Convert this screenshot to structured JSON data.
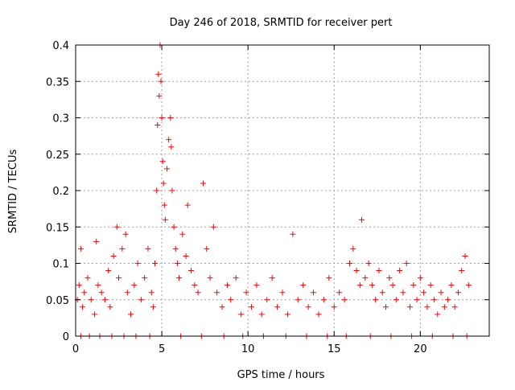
{
  "chart_data": {
    "type": "scatter",
    "title": "Day 246 of 2018, SRMTID for receiver pert",
    "xlabel": "GPS time / hours",
    "ylabel": "SRMTID / TECUs",
    "xlim": [
      0,
      24
    ],
    "ylim": [
      0,
      0.4
    ],
    "grid": true,
    "marker": "+",
    "color": "#ff0000",
    "x_ticks": [
      0,
      5,
      10,
      15,
      20
    ],
    "x_tick_labels": [
      "0",
      "5",
      "10",
      "15",
      "20"
    ],
    "y_ticks": [
      0,
      0.05,
      0.1,
      0.15,
      0.2,
      0.25,
      0.3,
      0.35,
      0.4
    ],
    "y_tick_labels": [
      "0",
      "0.05",
      "0.1",
      "0.15",
      "0.2",
      "0.25",
      "0.3",
      "0.35",
      "0.4"
    ],
    "series": [
      {
        "name": "SRMTID",
        "points": [
          [
            0.1,
            0.05
          ],
          [
            0.2,
            0.07
          ],
          [
            0.3,
            0.12
          ],
          [
            0.4,
            0.04
          ],
          [
            0.5,
            0.06
          ],
          [
            0.7,
            0.08
          ],
          [
            0.9,
            0.05
          ],
          [
            1.1,
            0.03
          ],
          [
            1.2,
            0.13
          ],
          [
            1.3,
            0.07
          ],
          [
            1.5,
            0.06
          ],
          [
            1.7,
            0.05
          ],
          [
            1.9,
            0.09
          ],
          [
            2.0,
            0.04
          ],
          [
            2.2,
            0.11
          ],
          [
            2.4,
            0.15
          ],
          [
            2.5,
            0.08
          ],
          [
            2.7,
            0.12
          ],
          [
            2.9,
            0.14
          ],
          [
            3.0,
            0.06
          ],
          [
            3.2,
            0.03
          ],
          [
            3.4,
            0.07
          ],
          [
            3.6,
            0.1
          ],
          [
            3.8,
            0.05
          ],
          [
            4.0,
            0.08
          ],
          [
            4.2,
            0.12
          ],
          [
            4.4,
            0.06
          ],
          [
            4.5,
            0.04
          ],
          [
            4.6,
            0.1
          ],
          [
            4.7,
            0.2
          ],
          [
            4.75,
            0.29
          ],
          [
            4.8,
            0.36
          ],
          [
            4.85,
            0.33
          ],
          [
            4.9,
            0.4
          ],
          [
            4.95,
            0.35
          ],
          [
            5.0,
            0.3
          ],
          [
            5.05,
            0.24
          ],
          [
            5.1,
            0.21
          ],
          [
            5.15,
            0.18
          ],
          [
            5.2,
            0.16
          ],
          [
            5.3,
            0.23
          ],
          [
            5.4,
            0.27
          ],
          [
            5.5,
            0.3
          ],
          [
            5.55,
            0.26
          ],
          [
            5.6,
            0.2
          ],
          [
            5.7,
            0.15
          ],
          [
            5.8,
            0.12
          ],
          [
            5.9,
            0.1
          ],
          [
            6.0,
            0.08
          ],
          [
            6.2,
            0.14
          ],
          [
            6.4,
            0.11
          ],
          [
            6.5,
            0.18
          ],
          [
            6.7,
            0.09
          ],
          [
            6.9,
            0.07
          ],
          [
            7.1,
            0.06
          ],
          [
            7.4,
            0.21
          ],
          [
            7.6,
            0.12
          ],
          [
            7.8,
            0.08
          ],
          [
            8.0,
            0.15
          ],
          [
            8.2,
            0.06
          ],
          [
            8.5,
            0.04
          ],
          [
            8.8,
            0.07
          ],
          [
            9.0,
            0.05
          ],
          [
            9.3,
            0.08
          ],
          [
            9.6,
            0.03
          ],
          [
            9.9,
            0.06
          ],
          [
            10.2,
            0.04
          ],
          [
            10.5,
            0.07
          ],
          [
            10.8,
            0.03
          ],
          [
            11.1,
            0.05
          ],
          [
            11.4,
            0.08
          ],
          [
            11.7,
            0.04
          ],
          [
            12.0,
            0.06
          ],
          [
            12.3,
            0.03
          ],
          [
            12.6,
            0.14
          ],
          [
            12.9,
            0.05
          ],
          [
            13.2,
            0.07
          ],
          [
            13.5,
            0.04
          ],
          [
            13.8,
            0.06
          ],
          [
            14.1,
            0.03
          ],
          [
            14.4,
            0.05
          ],
          [
            14.7,
            0.08
          ],
          [
            15.0,
            0.04
          ],
          [
            15.3,
            0.06
          ],
          [
            15.6,
            0.05
          ],
          [
            15.9,
            0.1
          ],
          [
            16.1,
            0.12
          ],
          [
            16.3,
            0.09
          ],
          [
            16.5,
            0.07
          ],
          [
            16.6,
            0.16
          ],
          [
            16.8,
            0.08
          ],
          [
            17.0,
            0.1
          ],
          [
            17.2,
            0.07
          ],
          [
            17.4,
            0.05
          ],
          [
            17.6,
            0.09
          ],
          [
            17.8,
            0.06
          ],
          [
            18.0,
            0.04
          ],
          [
            18.2,
            0.08
          ],
          [
            18.4,
            0.07
          ],
          [
            18.6,
            0.05
          ],
          [
            18.8,
            0.09
          ],
          [
            19.0,
            0.06
          ],
          [
            19.2,
            0.1
          ],
          [
            19.4,
            0.04
          ],
          [
            19.6,
            0.07
          ],
          [
            19.8,
            0.05
          ],
          [
            20.0,
            0.08
          ],
          [
            20.2,
            0.06
          ],
          [
            20.4,
            0.04
          ],
          [
            20.6,
            0.07
          ],
          [
            20.8,
            0.05
          ],
          [
            21.0,
            0.03
          ],
          [
            21.2,
            0.06
          ],
          [
            21.4,
            0.04
          ],
          [
            21.6,
            0.05
          ],
          [
            21.8,
            0.07
          ],
          [
            22.0,
            0.04
          ],
          [
            22.2,
            0.06
          ],
          [
            22.4,
            0.09
          ],
          [
            22.6,
            0.11
          ],
          [
            22.8,
            0.07
          ],
          [
            0.3,
            0.0
          ],
          [
            0.8,
            0.0
          ],
          [
            1.4,
            0.0
          ],
          [
            2.1,
            0.0
          ],
          [
            2.8,
            0.0
          ],
          [
            3.5,
            0.0
          ],
          [
            4.3,
            0.0
          ],
          [
            6.1,
            0.0
          ],
          [
            7.3,
            0.0
          ],
          [
            8.6,
            0.0
          ],
          [
            9.7,
            0.0
          ],
          [
            10.9,
            0.0
          ],
          [
            12.2,
            0.0
          ],
          [
            13.4,
            0.0
          ],
          [
            14.6,
            0.0
          ],
          [
            15.7,
            0.0
          ],
          [
            17.1,
            0.0
          ],
          [
            18.3,
            0.0
          ],
          [
            19.5,
            0.0
          ],
          [
            20.7,
            0.0
          ],
          [
            21.9,
            0.0
          ],
          [
            22.7,
            0.0
          ]
        ]
      }
    ]
  }
}
